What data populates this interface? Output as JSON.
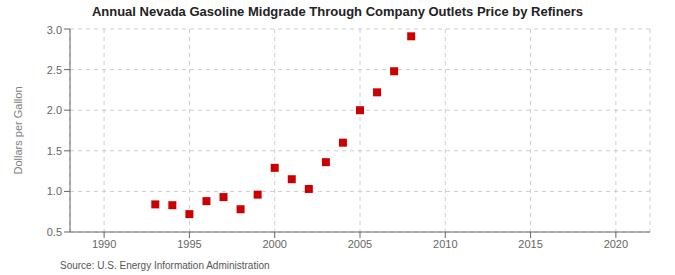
{
  "chart_data": {
    "type": "scatter",
    "title": "Annual Nevada Gasoline Midgrade Through Company Outlets Price by Refiners",
    "ylabel": "Dollars per Gallon",
    "annotations": [
      "Source: U.S. Energy Information Administration"
    ],
    "x": [
      1993,
      1994,
      1995,
      1996,
      1997,
      1998,
      1999,
      2000,
      2001,
      2002,
      2003,
      2004,
      2005,
      2006,
      2007,
      2008
    ],
    "values": [
      0.84,
      0.83,
      0.72,
      0.88,
      0.93,
      0.78,
      0.96,
      1.29,
      1.15,
      1.03,
      1.36,
      1.6,
      2.0,
      2.22,
      2.48,
      2.91
    ],
    "color": "#cc0000",
    "marker": "square",
    "xlim": [
      1988,
      2022
    ],
    "ylim": [
      0.5,
      3.0
    ],
    "xticks": [
      1990,
      1995,
      2000,
      2005,
      2010,
      2015,
      2020
    ],
    "yticks": [
      0.5,
      {
        "value": 1.0,
        "label": "1.0"
      },
      1.5,
      {
        "value": 2.0,
        "label": "2.0"
      },
      2.5,
      {
        "value": 3.0,
        "label": "3.0"
      }
    ],
    "grid": true
  }
}
